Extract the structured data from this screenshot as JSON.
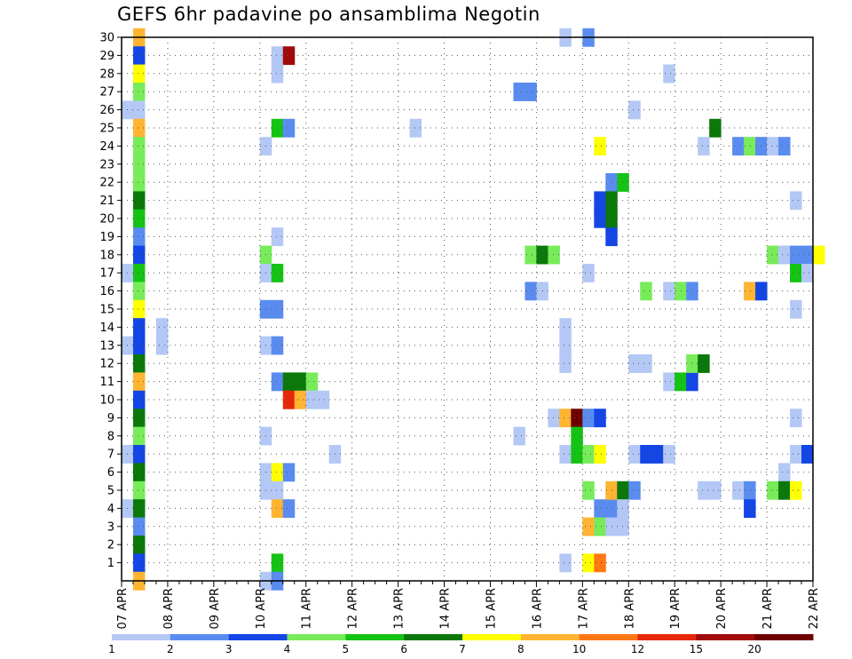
{
  "chart_data": {
    "type": "heatmap",
    "title": "GEFS 6hr padavine po ansamblima Negotin",
    "xlabel": "",
    "ylabel": "",
    "x_tick_labels": [
      "07 APR",
      "08 APR",
      "09 APR",
      "10 APR",
      "11 APR",
      "12 APR",
      "13 APR",
      "14 APR",
      "15 APR",
      "16 APR",
      "17 APR",
      "18 APR",
      "19 APR",
      "20 APR",
      "21 APR",
      "22 APR"
    ],
    "y_tick_labels": [
      "1",
      "2",
      "3",
      "4",
      "5",
      "6",
      "7",
      "8",
      "9",
      "10",
      "11",
      "12",
      "13",
      "14",
      "15",
      "16",
      "17",
      "18",
      "19",
      "20",
      "21",
      "22",
      "23",
      "24",
      "25",
      "26",
      "27",
      "28",
      "29",
      "30"
    ],
    "x_start": "07 APR 00Z",
    "x_step_hours": 6,
    "xlim_steps": [
      0,
      60
    ],
    "ylim": [
      0,
      30
    ],
    "grid": true,
    "legend_position": "bottom",
    "colorbar": {
      "labels": [
        "1",
        "2",
        "3",
        "4",
        "5",
        "6",
        "7",
        "8",
        "10",
        "12",
        "15",
        "20"
      ],
      "colors": [
        "#b4c8f5",
        "#5a8cf0",
        "#1446e6",
        "#78eb5a",
        "#14c314",
        "#0a780a",
        "#ffff00",
        "#ffb432",
        "#ff7814",
        "#e6280a",
        "#a00a0a",
        "#6e0000"
      ]
    },
    "cells": [
      [
        30,
        1,
        7
      ],
      [
        29,
        1,
        2
      ],
      [
        28,
        1,
        6
      ],
      [
        27,
        1,
        3
      ],
      [
        26,
        0,
        0
      ],
      [
        26,
        1,
        0
      ],
      [
        25,
        1,
        7
      ],
      [
        24,
        1,
        3
      ],
      [
        23,
        1,
        3
      ],
      [
        22,
        1,
        3
      ],
      [
        21,
        1,
        5
      ],
      [
        20,
        1,
        4
      ],
      [
        19,
        1,
        1
      ],
      [
        18,
        1,
        2
      ],
      [
        17,
        0,
        0
      ],
      [
        17,
        1,
        4
      ],
      [
        16,
        1,
        3
      ],
      [
        15,
        1,
        6
      ],
      [
        14,
        1,
        2
      ],
      [
        13,
        0,
        0
      ],
      [
        13,
        1,
        2
      ],
      [
        12,
        1,
        5
      ],
      [
        11,
        1,
        7
      ],
      [
        10,
        1,
        2
      ],
      [
        9,
        1,
        5
      ],
      [
        8,
        1,
        3
      ],
      [
        7,
        0,
        0
      ],
      [
        7,
        1,
        2
      ],
      [
        6,
        1,
        5
      ],
      [
        5,
        1,
        3
      ],
      [
        4,
        0,
        0
      ],
      [
        4,
        1,
        5
      ],
      [
        3,
        1,
        1
      ],
      [
        2,
        1,
        5
      ],
      [
        1,
        1,
        2
      ],
      [
        0,
        1,
        7
      ],
      [
        14,
        3,
        0
      ],
      [
        13,
        3,
        0
      ],
      [
        29,
        13,
        0
      ],
      [
        29,
        14,
        10
      ],
      [
        28,
        13,
        0
      ],
      [
        25,
        13,
        4
      ],
      [
        25,
        14,
        1
      ],
      [
        24,
        12,
        0
      ],
      [
        19,
        13,
        0
      ],
      [
        18,
        12,
        3
      ],
      [
        17,
        12,
        0
      ],
      [
        17,
        13,
        4
      ],
      [
        15,
        12,
        1
      ],
      [
        15,
        13,
        1
      ],
      [
        13,
        12,
        0
      ],
      [
        13,
        13,
        1
      ],
      [
        11,
        13,
        1
      ],
      [
        11,
        14,
        5
      ],
      [
        11,
        15,
        5
      ],
      [
        11,
        16,
        3
      ],
      [
        10,
        14,
        9
      ],
      [
        10,
        15,
        7
      ],
      [
        10,
        16,
        0
      ],
      [
        10,
        17,
        0
      ],
      [
        8,
        12,
        0
      ],
      [
        6,
        12,
        0
      ],
      [
        6,
        13,
        6
      ],
      [
        6,
        14,
        1
      ],
      [
        5,
        12,
        0
      ],
      [
        5,
        13,
        0
      ],
      [
        4,
        13,
        7
      ],
      [
        4,
        14,
        1
      ],
      [
        1,
        13,
        4
      ],
      [
        0,
        12,
        0
      ],
      [
        0,
        13,
        1
      ],
      [
        7,
        18,
        0
      ],
      [
        25,
        25,
        0
      ],
      [
        27,
        34,
        1
      ],
      [
        27,
        35,
        1
      ],
      [
        18,
        35,
        3
      ],
      [
        18,
        36,
        5
      ],
      [
        18,
        37,
        3
      ],
      [
        16,
        35,
        1
      ],
      [
        16,
        36,
        0
      ],
      [
        9,
        37,
        0
      ],
      [
        9,
        38,
        7
      ],
      [
        9,
        39,
        11
      ],
      [
        9,
        40,
        1
      ],
      [
        9,
        41,
        2
      ],
      [
        8,
        34,
        0
      ],
      [
        8,
        39,
        4
      ],
      [
        7,
        38,
        0
      ],
      [
        7,
        39,
        4
      ],
      [
        7,
        40,
        3
      ],
      [
        7,
        41,
        6
      ],
      [
        30,
        38,
        0
      ],
      [
        30,
        40,
        1
      ],
      [
        14,
        38,
        0
      ],
      [
        13,
        38,
        0
      ],
      [
        12,
        38,
        0
      ],
      [
        17,
        40,
        0
      ],
      [
        5,
        40,
        3
      ],
      [
        4,
        41,
        1
      ],
      [
        4,
        42,
        1
      ],
      [
        3,
        40,
        7
      ],
      [
        3,
        41,
        3
      ],
      [
        3,
        42,
        0
      ],
      [
        3,
        43,
        0
      ],
      [
        1,
        38,
        0
      ],
      [
        1,
        40,
        6
      ],
      [
        1,
        41,
        8
      ],
      [
        24,
        41,
        6
      ],
      [
        22,
        42,
        1
      ],
      [
        22,
        43,
        4
      ],
      [
        21,
        41,
        2
      ],
      [
        21,
        42,
        5
      ],
      [
        20,
        41,
        2
      ],
      [
        20,
        42,
        5
      ],
      [
        19,
        42,
        2
      ],
      [
        5,
        42,
        7
      ],
      [
        5,
        43,
        5
      ],
      [
        5,
        44,
        1
      ],
      [
        4,
        43,
        0
      ],
      [
        26,
        44,
        0
      ],
      [
        16,
        45,
        3
      ],
      [
        12,
        44,
        0
      ],
      [
        12,
        45,
        0
      ],
      [
        11,
        47,
        0
      ],
      [
        11,
        48,
        4
      ],
      [
        11,
        49,
        2
      ],
      [
        7,
        44,
        0
      ],
      [
        7,
        45,
        2
      ],
      [
        7,
        46,
        2
      ],
      [
        7,
        47,
        0
      ],
      [
        28,
        47,
        0
      ],
      [
        16,
        47,
        0
      ],
      [
        16,
        48,
        3
      ],
      [
        16,
        49,
        1
      ],
      [
        25,
        51,
        5
      ],
      [
        24,
        50,
        0
      ],
      [
        12,
        49,
        3
      ],
      [
        12,
        50,
        5
      ],
      [
        5,
        50,
        0
      ],
      [
        5,
        51,
        0
      ],
      [
        5,
        53,
        0
      ],
      [
        5,
        54,
        1
      ],
      [
        4,
        54,
        2
      ],
      [
        24,
        53,
        1
      ],
      [
        24,
        54,
        3
      ],
      [
        24,
        55,
        1
      ],
      [
        24,
        56,
        0
      ],
      [
        24,
        57,
        1
      ],
      [
        16,
        54,
        7
      ],
      [
        16,
        55,
        2
      ],
      [
        18,
        56,
        3
      ],
      [
        18,
        57,
        0
      ],
      [
        18,
        58,
        1
      ],
      [
        18,
        59,
        1
      ],
      [
        18,
        60,
        6
      ],
      [
        17,
        58,
        4
      ],
      [
        17,
        59,
        0
      ],
      [
        15,
        58,
        0
      ],
      [
        21,
        58,
        0
      ],
      [
        6,
        57,
        0
      ],
      [
        5,
        56,
        3
      ],
      [
        5,
        57,
        5
      ],
      [
        5,
        58,
        6
      ],
      [
        9,
        58,
        0
      ],
      [
        7,
        58,
        0
      ],
      [
        7,
        59,
        2
      ]
    ]
  }
}
